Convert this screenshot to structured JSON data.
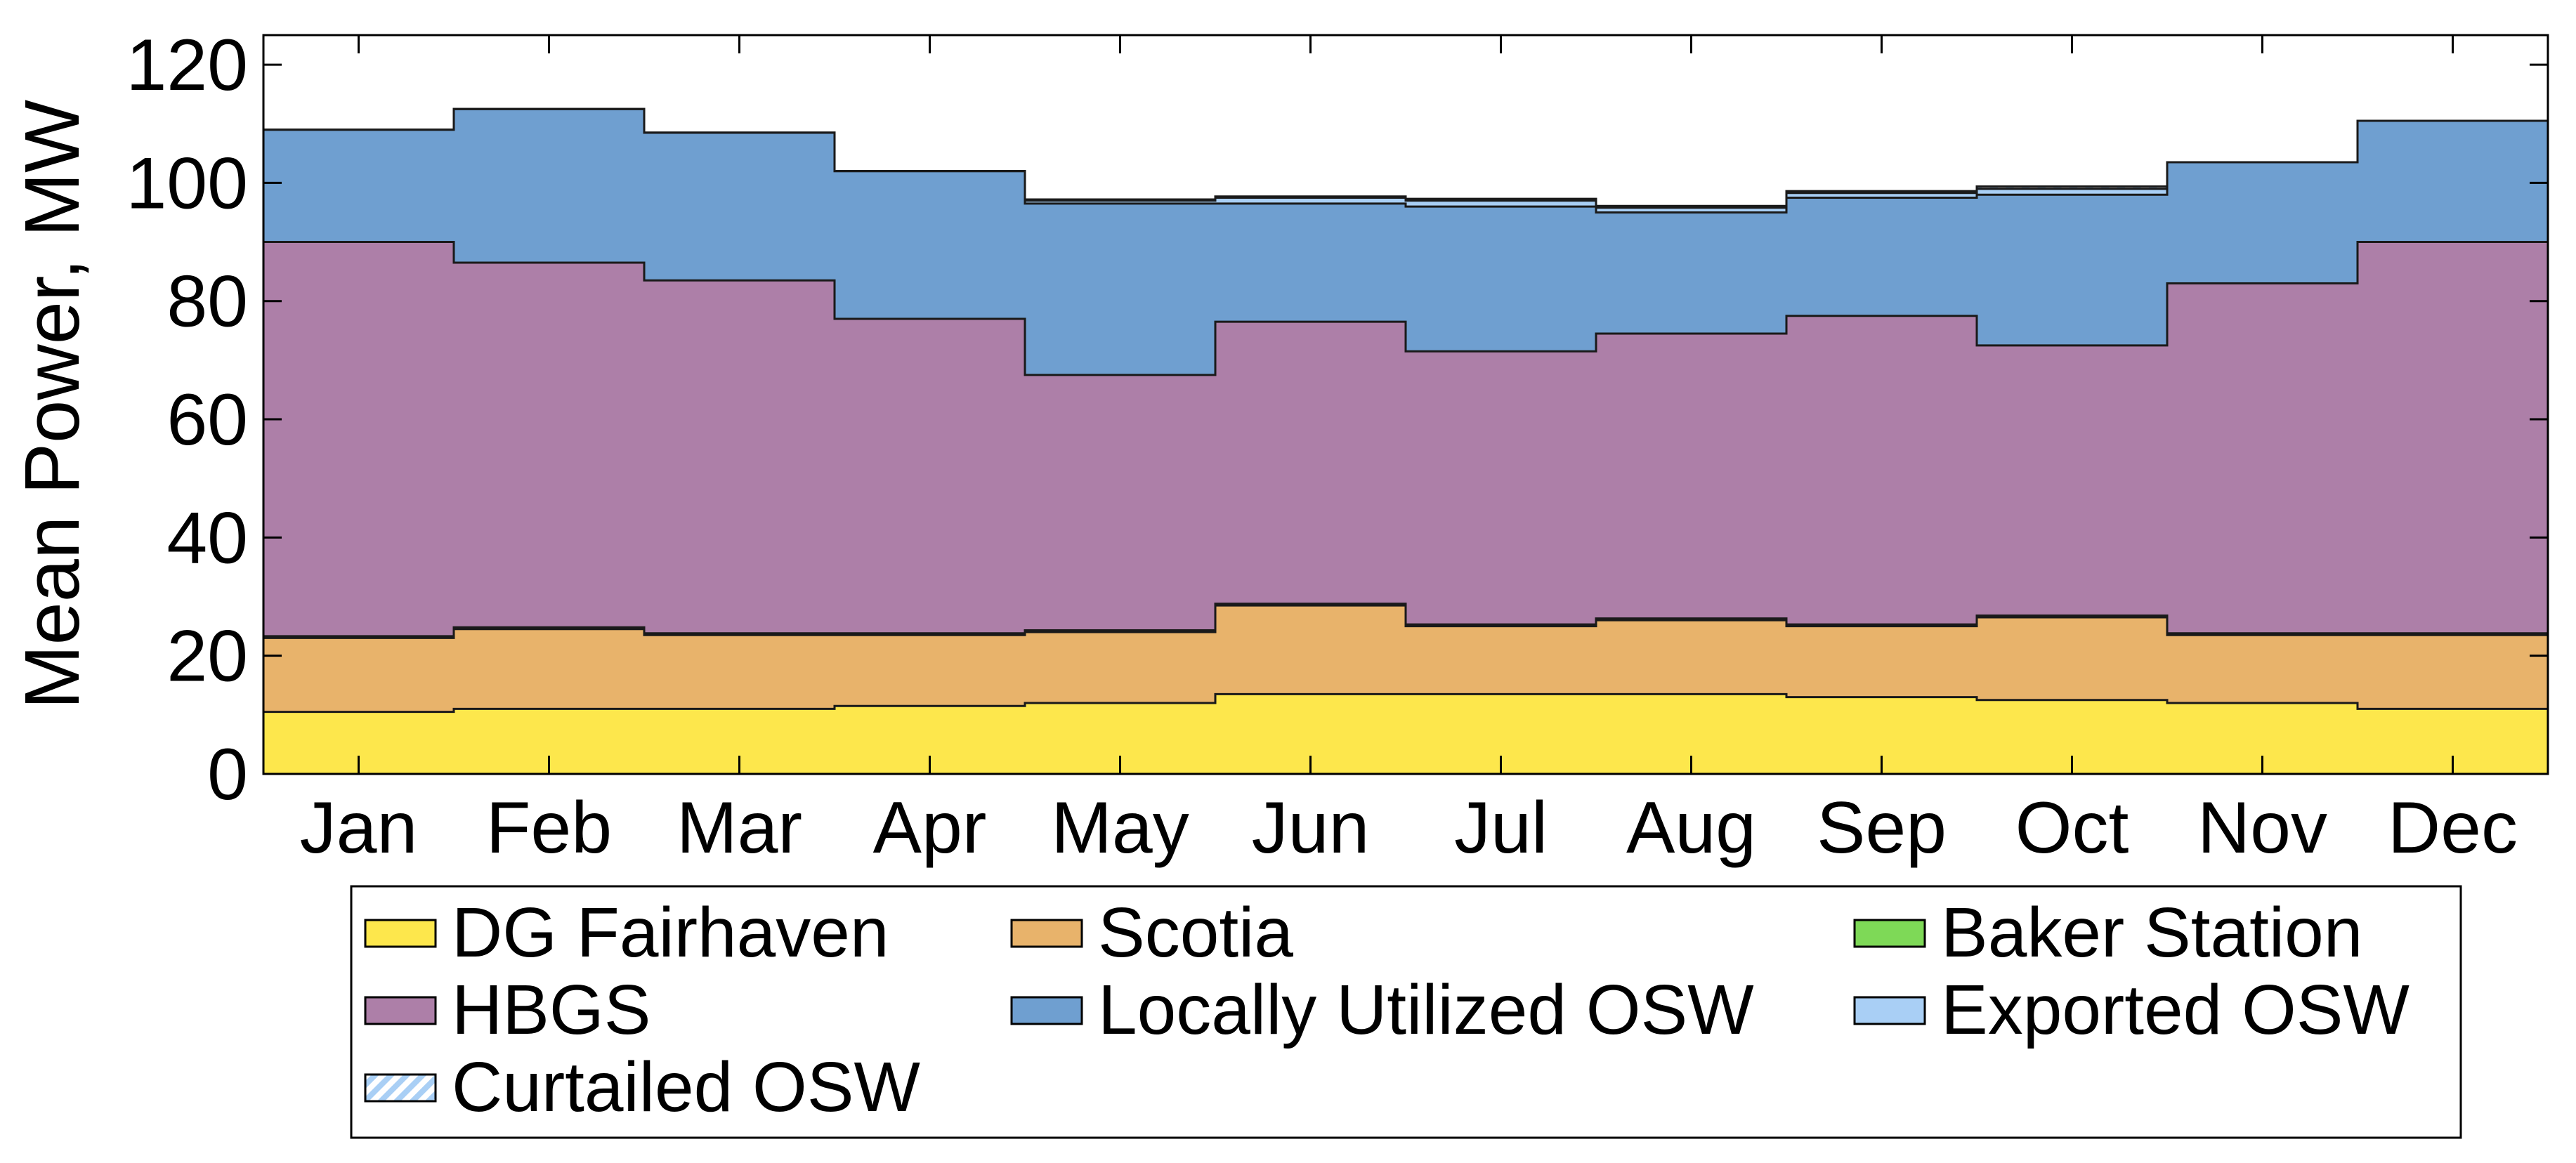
{
  "chart_data": {
    "type": "area",
    "stacked": true,
    "step": true,
    "title": "",
    "xlabel": "",
    "ylabel": "Mean Power, MW",
    "ylim": [
      0,
      125
    ],
    "yticks": [
      0,
      20,
      40,
      60,
      80,
      100,
      120
    ],
    "grid": false,
    "legend_position": "bottom",
    "categories": [
      "Jan",
      "Feb",
      "Mar",
      "Apr",
      "May",
      "Jun",
      "Jul",
      "Aug",
      "Sep",
      "Oct",
      "Nov",
      "Dec"
    ],
    "series": [
      {
        "name": "DG Fairhaven",
        "color": "#fde74c",
        "pattern": "solid",
        "values": [
          10.5,
          11,
          11,
          11.5,
          12,
          13.5,
          13.5,
          13.5,
          13,
          12.5,
          12,
          11
        ]
      },
      {
        "name": "Scotia",
        "color": "#e8b36b",
        "pattern": "solid",
        "values": [
          12.5,
          13.5,
          12.5,
          12,
          12,
          15,
          11.5,
          12.5,
          12,
          14,
          11.5,
          12.5
        ]
      },
      {
        "name": "Baker Station",
        "color": "#7ed957",
        "pattern": "solid",
        "values": [
          0.3,
          0.3,
          0.3,
          0.3,
          0.3,
          0.3,
          0.3,
          0.3,
          0.3,
          0.3,
          0.3,
          0.3
        ]
      },
      {
        "name": "HBGS",
        "color": "#ad7fa8",
        "pattern": "solid",
        "values": [
          66.7,
          61.7,
          59.7,
          53.2,
          43.2,
          47.7,
          46.2,
          48.2,
          52.2,
          45.7,
          59.2,
          66.2
        ]
      },
      {
        "name": "Locally Utilized OSW",
        "color": "#6f9fd0",
        "pattern": "solid",
        "values": [
          19,
          26,
          25,
          25,
          29,
          20,
          24.5,
          20.5,
          20,
          25.5,
          20.5,
          20.5
        ]
      },
      {
        "name": "Exported OSW",
        "color": "#a9cff5",
        "pattern": "solid",
        "values": [
          0,
          0,
          0,
          0,
          0.5,
          1,
          1,
          0.8,
          0.8,
          1,
          0,
          0
        ]
      },
      {
        "name": "Curtailed OSW",
        "color": "#a9cff5",
        "pattern": "hatched",
        "values": [
          0,
          0,
          0,
          0,
          0.2,
          0.2,
          0.3,
          0.3,
          0.3,
          0.4,
          0,
          0
        ]
      }
    ]
  },
  "colors": {
    "axis": "#000000",
    "outline": "#1a1a1a",
    "background": "#ffffff"
  }
}
